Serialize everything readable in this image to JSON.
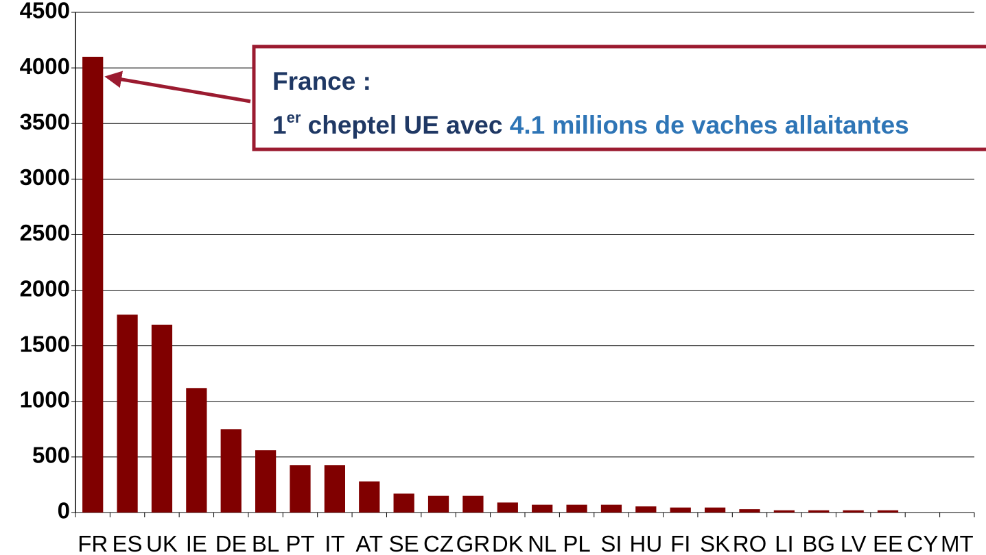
{
  "chart_data": {
    "type": "bar",
    "categories": [
      "FR",
      "ES",
      "UK",
      "IE",
      "DE",
      "BL",
      "PT",
      "IT",
      "AT",
      "SE",
      "CZ",
      "GR",
      "DK",
      "NL",
      "PL",
      "SI",
      "HU",
      "FI",
      "SK",
      "RO",
      "LI",
      "BG",
      "LV",
      "EE",
      "CY",
      "MT"
    ],
    "values": [
      4100,
      1780,
      1690,
      1120,
      750,
      560,
      425,
      425,
      280,
      170,
      150,
      150,
      90,
      70,
      70,
      70,
      55,
      45,
      45,
      30,
      20,
      20,
      20,
      20,
      0,
      0
    ],
    "color": "#800000",
    "ylim": [
      0,
      4500
    ],
    "yticks": [
      0,
      500,
      1000,
      1500,
      2000,
      2500,
      3000,
      3500,
      4000,
      4500
    ],
    "grid": true,
    "annotation": {
      "title": "France :",
      "number": "1",
      "superscript": "er",
      "text": " cheptel UE avec ",
      "highlight": "4.1 millions de vaches allaitantes"
    }
  }
}
